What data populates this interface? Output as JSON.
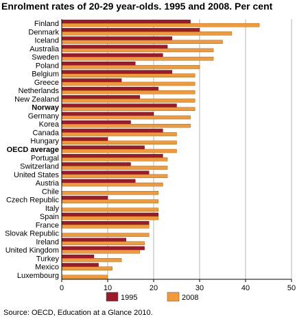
{
  "chart_data": {
    "type": "bar",
    "orientation": "horizontal",
    "title": "Enrolment rates of 20-29 year-olds.",
    "subtitle": "1995 and 2008. Per cent",
    "categories": [
      "Finland",
      "Denmark",
      "Iceland",
      "Australia",
      "Sweden",
      "Poland",
      "Belgium",
      "Greece",
      "Netherlands",
      "New Zealand",
      "Norway",
      "Germany",
      "Korea",
      "Canada",
      "Hungary",
      "OECD average",
      "Portugal",
      "Switzerland",
      "United States",
      "Austria",
      "Chile",
      "Czech Republic",
      "Italy",
      "Spain",
      "France",
      "Slovak Republic",
      "Ireland",
      "United Kingdom",
      "Turkey",
      "Mexico",
      "Luxembourg"
    ],
    "bold_categories": [
      "Norway",
      "OECD average"
    ],
    "series": [
      {
        "name": "1995",
        "color": "#9b1b2c",
        "values": [
          28,
          30,
          24,
          23,
          22,
          16,
          24,
          13,
          21,
          17,
          25,
          20,
          15,
          22,
          10,
          18,
          22,
          15,
          19,
          16,
          null,
          10,
          null,
          21,
          19,
          null,
          14,
          18,
          7,
          8,
          null
        ]
      },
      {
        "name": "2008",
        "color": "#f29a38",
        "values": [
          43,
          37,
          35,
          33,
          33,
          30,
          29,
          29,
          29,
          29,
          29,
          28,
          28,
          25,
          25,
          25,
          23,
          23,
          23,
          22,
          21,
          21,
          21,
          21,
          19,
          19,
          18,
          17,
          13,
          11,
          10
        ]
      }
    ],
    "xlim": [
      0,
      50
    ],
    "xticks": [
      0,
      10,
      20,
      30,
      40,
      50
    ],
    "grid": true,
    "legend_position": "bottom"
  },
  "source": "Source: OECD, Education at a Glance 2010."
}
